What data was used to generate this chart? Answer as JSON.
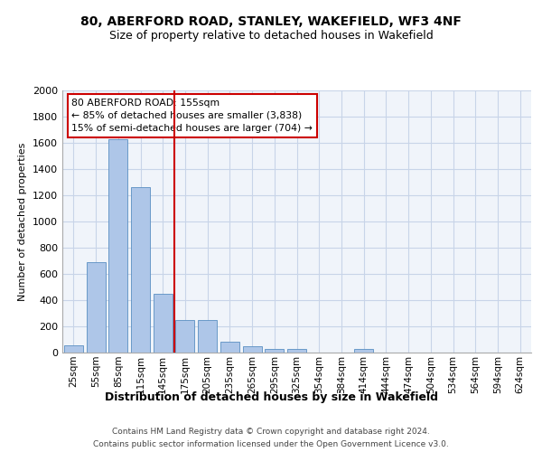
{
  "title1": "80, ABERFORD ROAD, STANLEY, WAKEFIELD, WF3 4NF",
  "title2": "Size of property relative to detached houses in Wakefield",
  "xlabel": "Distribution of detached houses by size in Wakefield",
  "ylabel": "Number of detached properties",
  "categories": [
    "25sqm",
    "55sqm",
    "85sqm",
    "115sqm",
    "145sqm",
    "175sqm",
    "205sqm",
    "235sqm",
    "265sqm",
    "295sqm",
    "325sqm",
    "354sqm",
    "384sqm",
    "414sqm",
    "444sqm",
    "474sqm",
    "504sqm",
    "534sqm",
    "564sqm",
    "594sqm",
    "624sqm"
  ],
  "values": [
    55,
    690,
    1630,
    1265,
    450,
    245,
    245,
    80,
    45,
    25,
    25,
    0,
    0,
    30,
    0,
    0,
    0,
    0,
    0,
    0,
    0
  ],
  "bar_color": "#aec6e8",
  "bar_edge_color": "#5a8fc2",
  "vline_x_index": 4.5,
  "vline_color": "#cc0000",
  "annotation_text": "80 ABERFORD ROAD: 155sqm\n← 85% of detached houses are smaller (3,838)\n15% of semi-detached houses are larger (704) →",
  "annotation_box_color": "#ffffff",
  "annotation_box_edge": "#cc0000",
  "ylim": [
    0,
    2000
  ],
  "yticks": [
    0,
    200,
    400,
    600,
    800,
    1000,
    1200,
    1400,
    1600,
    1800,
    2000
  ],
  "footer1": "Contains HM Land Registry data © Crown copyright and database right 2024.",
  "footer2": "Contains public sector information licensed under the Open Government Licence v3.0.",
  "bg_color": "#f0f4fa",
  "grid_color": "#c8d4e8",
  "title1_fontsize": 10,
  "title2_fontsize": 9,
  "ylabel_fontsize": 8,
  "xlabel_fontsize": 9,
  "tick_fontsize": 8,
  "xtick_fontsize": 7.5,
  "footer_fontsize": 6.5
}
